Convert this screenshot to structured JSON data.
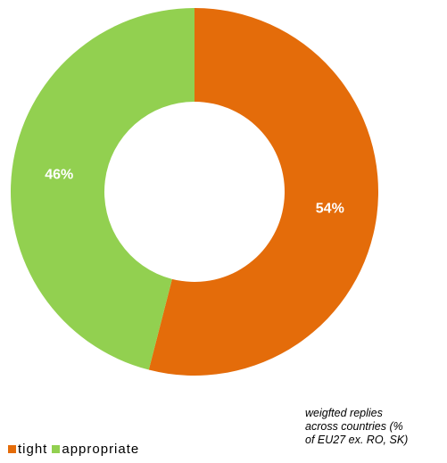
{
  "chart_data": {
    "type": "pie",
    "donut": true,
    "categories": [
      "tight",
      "appropriate"
    ],
    "values": [
      54,
      46
    ],
    "data_labels": [
      "54%",
      "46%"
    ],
    "colors": [
      "#E46C0A",
      "#92D050"
    ],
    "legend_placement": "bottom-left",
    "note_lines": [
      "weigfted replies",
      "across countries (%",
      "of EU27 ex. RO, SK)"
    ]
  }
}
